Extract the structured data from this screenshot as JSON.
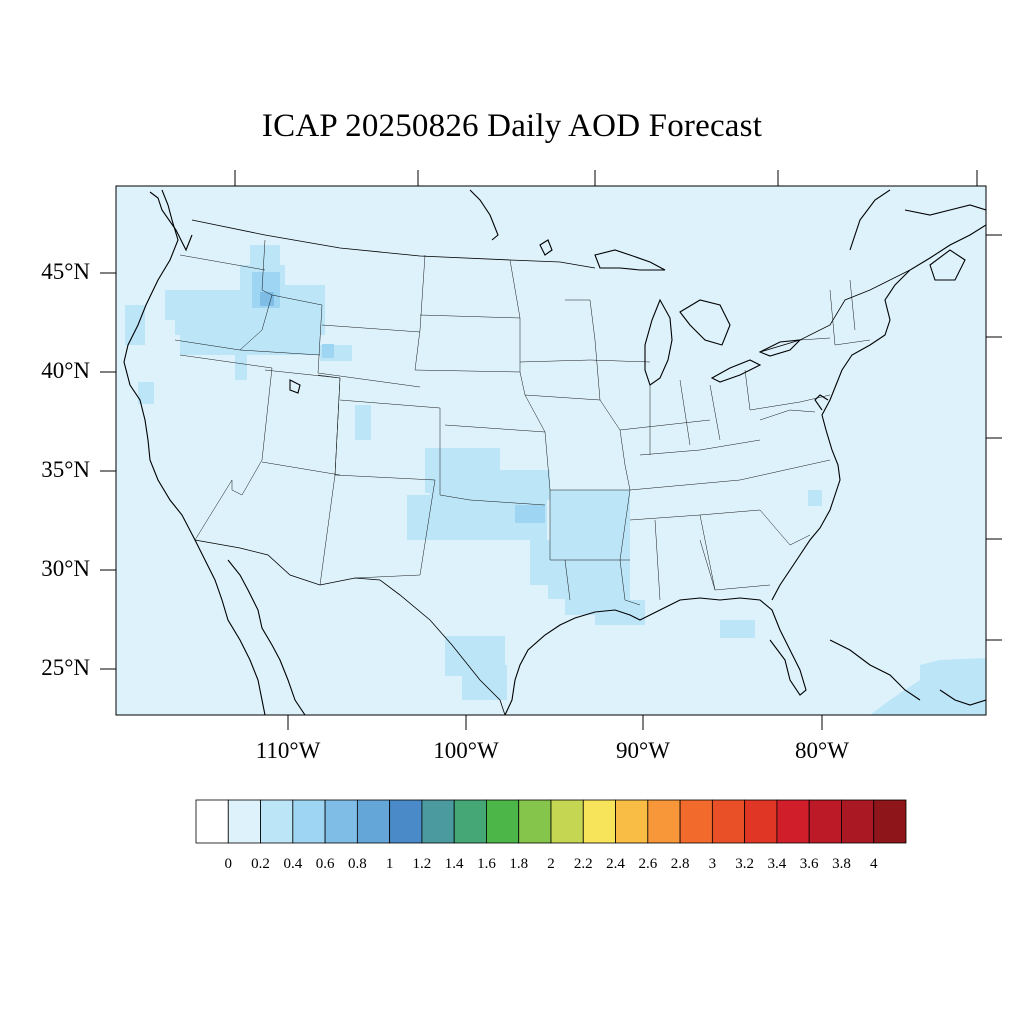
{
  "title": "ICAP 20250826 Daily AOD Forecast",
  "map": {
    "projection": "lambert-conformal",
    "background_color": "#ddf2fb",
    "lat_labels": [
      "45°N",
      "40°N",
      "35°N",
      "30°N",
      "25°N"
    ],
    "lon_labels": [
      "110°W",
      "100°W",
      "90°W",
      "80°W"
    ]
  },
  "colorbar": {
    "colors": [
      "#ffffff",
      "#ddf2fb",
      "#bce5f8",
      "#9dd5f3",
      "#80bde6",
      "#65a6d9",
      "#4a8ac8",
      "#4a9aa0",
      "#45a776",
      "#4cb748",
      "#86c54b",
      "#c5d652",
      "#f8e45a",
      "#f9bd45",
      "#f8973a",
      "#f26b2c",
      "#ea5028",
      "#e03626",
      "#d01f2a",
      "#bb1a26",
      "#a91823",
      "#8e1519"
    ],
    "labels": [
      "0",
      "0.2",
      "0.4",
      "0.6",
      "0.8",
      "1",
      "1.2",
      "1.4",
      "1.6",
      "1.8",
      "2",
      "2.2",
      "2.4",
      "2.6",
      "2.8",
      "3",
      "3.2",
      "3.4",
      "3.6",
      "3.8",
      "4"
    ]
  }
}
